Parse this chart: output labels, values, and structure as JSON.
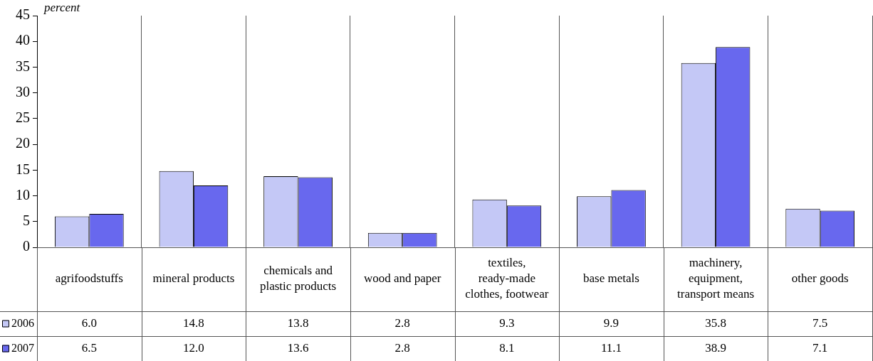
{
  "chart_data": {
    "type": "bar",
    "ylabel": "percent",
    "categories": [
      "agrifoodstuffs",
      "mineral products",
      "chemicals and plastic products",
      "wood and paper",
      "textiles, ready-made clothes, footwear",
      "base metals",
      "machinery, equipment, transport means",
      "other goods"
    ],
    "series": [
      {
        "name": "2006",
        "color": "#c4c8f6",
        "values": [
          6.0,
          14.8,
          13.8,
          2.8,
          9.3,
          9.9,
          35.8,
          7.5
        ],
        "value_labels": [
          "6.0",
          "14.8",
          "13.8",
          "2.8",
          "9.3",
          "9.9",
          "35.8",
          "7.5"
        ]
      },
      {
        "name": "2007",
        "color": "#6868ee",
        "values": [
          6.5,
          12.0,
          13.6,
          2.8,
          8.1,
          11.1,
          38.9,
          7.1
        ],
        "value_labels": [
          "6.5",
          "12.0",
          "13.6",
          "2.8",
          "8.1",
          "11.1",
          "38.9",
          "7.1"
        ]
      }
    ],
    "ylim": [
      0,
      45
    ],
    "yticks": [
      0,
      5,
      10,
      15,
      20,
      25,
      30,
      35,
      40,
      45
    ],
    "grid": "x",
    "legend": "bottom left"
  }
}
